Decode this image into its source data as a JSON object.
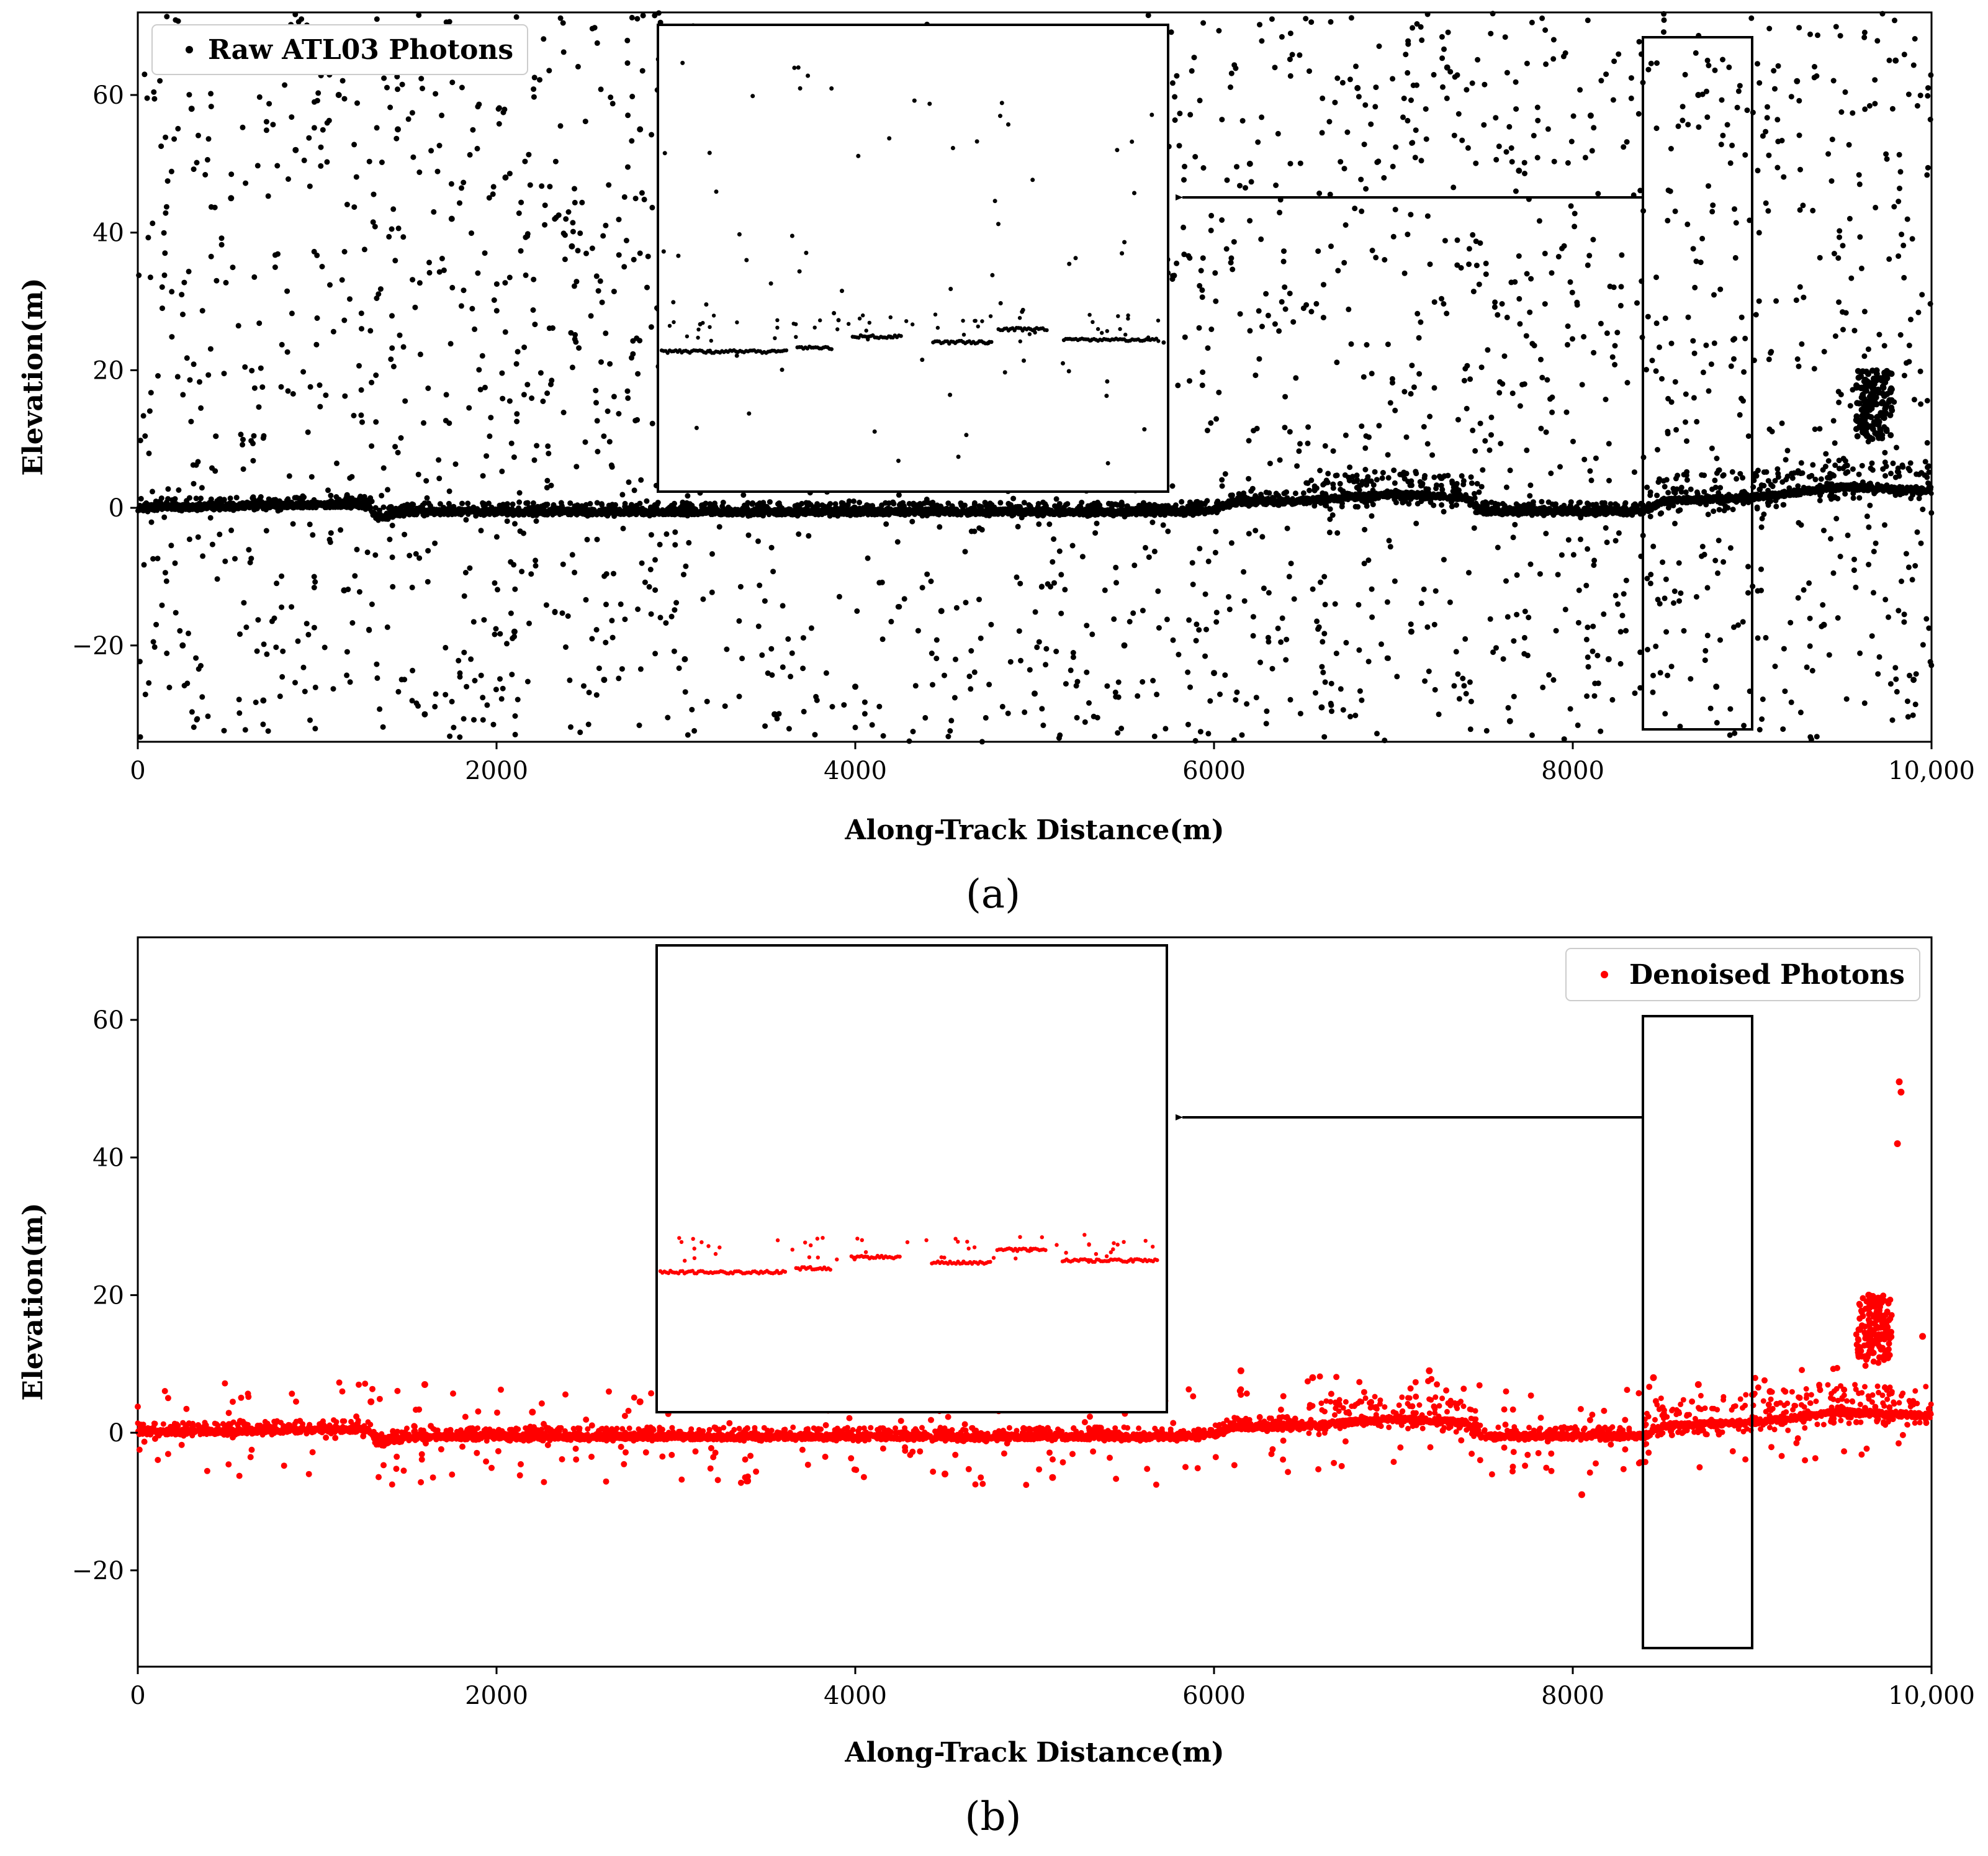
{
  "chart_data": [
    {
      "type": "scatter",
      "panel_caption": "(a)",
      "xlabel": "Along-Track Distance(m)",
      "ylabel": "Elevation(m)",
      "xlim": [
        0,
        10000
      ],
      "ylim": [
        -34,
        72
      ],
      "xticks": [
        0,
        2000,
        4000,
        6000,
        8000,
        10000
      ],
      "xtick_labels": [
        "0",
        "2000",
        "4000",
        "6000",
        "8000",
        "10,000"
      ],
      "yticks": [
        -20,
        0,
        20,
        40,
        60
      ],
      "ytick_labels": [
        "−20",
        "0",
        "20",
        "40",
        "60"
      ],
      "grid": false,
      "legend_position": "top-left",
      "color": "#000000",
      "series": [
        {
          "name": "Raw ATL03 Photons",
          "signal_profile": [
            [
              0,
              0
            ],
            [
              1200,
              0.5
            ],
            [
              1290,
              0.3
            ],
            [
              1330,
              -1.5
            ],
            [
              1500,
              -0.6
            ],
            [
              3000,
              -0.6
            ],
            [
              5800,
              -0.6
            ],
            [
              6000,
              -0.3
            ],
            [
              6100,
              0.8
            ],
            [
              6500,
              1.0
            ],
            [
              7000,
              2.0
            ],
            [
              7400,
              1.5
            ],
            [
              7500,
              -0.5
            ],
            [
              8400,
              -0.5
            ],
            [
              8500,
              1.0
            ],
            [
              9000,
              1.5
            ],
            [
              9500,
              3.0
            ],
            [
              10000,
              2.5
            ]
          ],
          "sample_noise_points": [
            [
              300,
              58
            ],
            [
              520,
              45
            ],
            [
              880,
              52
            ],
            [
              1120,
              60
            ],
            [
              1450,
              55
            ],
            [
              1750,
              42
            ],
            [
              2050,
              48
            ],
            [
              2420,
              38
            ],
            [
              2800,
              55
            ],
            [
              3160,
              30
            ],
            [
              3600,
              50
            ],
            [
              4050,
              44
            ],
            [
              4900,
              46
            ],
            [
              5600,
              58
            ],
            [
              6200,
              50
            ],
            [
              6800,
              61
            ],
            [
              7300,
              64
            ],
            [
              7700,
              49
            ],
            [
              8100,
              57
            ],
            [
              8700,
              60
            ],
            [
              9250,
              62
            ],
            [
              9800,
              65
            ],
            [
              250,
              -20
            ],
            [
              700,
              -28
            ],
            [
              1150,
              -12
            ],
            [
              1600,
              -30
            ],
            [
              2100,
              -18
            ],
            [
              2600,
              -25
            ],
            [
              3050,
              -22
            ],
            [
              3550,
              -30
            ],
            [
              4000,
              -26
            ],
            [
              4480,
              -15
            ],
            [
              5000,
              -27
            ],
            [
              5500,
              -20
            ],
            [
              6000,
              -24
            ],
            [
              6600,
              -29
            ],
            [
              7100,
              -18
            ],
            [
              7650,
              -31
            ],
            [
              8200,
              -22
            ],
            [
              8800,
              -26
            ],
            [
              9400,
              -17
            ],
            [
              9900,
              -25
            ]
          ]
        }
      ],
      "annotations": {
        "zoom_box_range": {
          "x": [
            8400,
            9000
          ],
          "y": [
            -32,
            68
          ]
        },
        "arrow_target": "inset (upper middle)"
      }
    },
    {
      "type": "scatter",
      "panel_caption": "(b)",
      "xlabel": "Along-Track Distance(m)",
      "ylabel": "Elevation(m)",
      "xlim": [
        0,
        10000
      ],
      "ylim": [
        -34,
        72
      ],
      "xticks": [
        0,
        2000,
        4000,
        6000,
        8000,
        10000
      ],
      "xtick_labels": [
        "0",
        "2000",
        "4000",
        "6000",
        "8000",
        "10,000"
      ],
      "yticks": [
        -20,
        0,
        20,
        40,
        60
      ],
      "ytick_labels": [
        "−20",
        "0",
        "20",
        "40",
        "60"
      ],
      "grid": false,
      "legend_position": "top-right",
      "color": "#ff0000",
      "series": [
        {
          "name": "Denoised Photons",
          "signal_profile": [
            [
              0,
              0
            ],
            [
              1200,
              0.5
            ],
            [
              1290,
              0.3
            ],
            [
              1330,
              -1.5
            ],
            [
              1500,
              -0.6
            ],
            [
              3000,
              -0.6
            ],
            [
              5800,
              -0.6
            ],
            [
              6000,
              -0.3
            ],
            [
              6100,
              0.8
            ],
            [
              6500,
              1.0
            ],
            [
              7000,
              2.0
            ],
            [
              7400,
              1.5
            ],
            [
              7500,
              -0.5
            ],
            [
              8400,
              -0.5
            ],
            [
              8500,
              1.0
            ],
            [
              9000,
              1.5
            ],
            [
              9500,
              3.0
            ],
            [
              10000,
              2.5
            ]
          ],
          "sample_outliers": [
            [
              9820,
              51
            ],
            [
              9830,
              49.5
            ],
            [
              9810,
              42
            ],
            [
              9650,
              20
            ],
            [
              9700,
              17
            ],
            [
              9600,
              15
            ],
            [
              1300,
              4.5
            ],
            [
              1600,
              7
            ],
            [
              2200,
              3
            ],
            [
              2800,
              4.5
            ],
            [
              3400,
              -7
            ],
            [
              4500,
              -6
            ],
            [
              5100,
              -6.5
            ],
            [
              6150,
              9
            ],
            [
              6550,
              8
            ],
            [
              7200,
              9
            ],
            [
              8050,
              -9
            ],
            [
              8450,
              8
            ],
            [
              8700,
              7
            ],
            [
              9100,
              6
            ],
            [
              9950,
              14
            ]
          ]
        }
      ],
      "annotations": {
        "zoom_box_range": {
          "x": [
            8400,
            9000
          ],
          "y": [
            -32,
            60
          ]
        },
        "arrow_target": "inset (upper middle)"
      }
    }
  ]
}
